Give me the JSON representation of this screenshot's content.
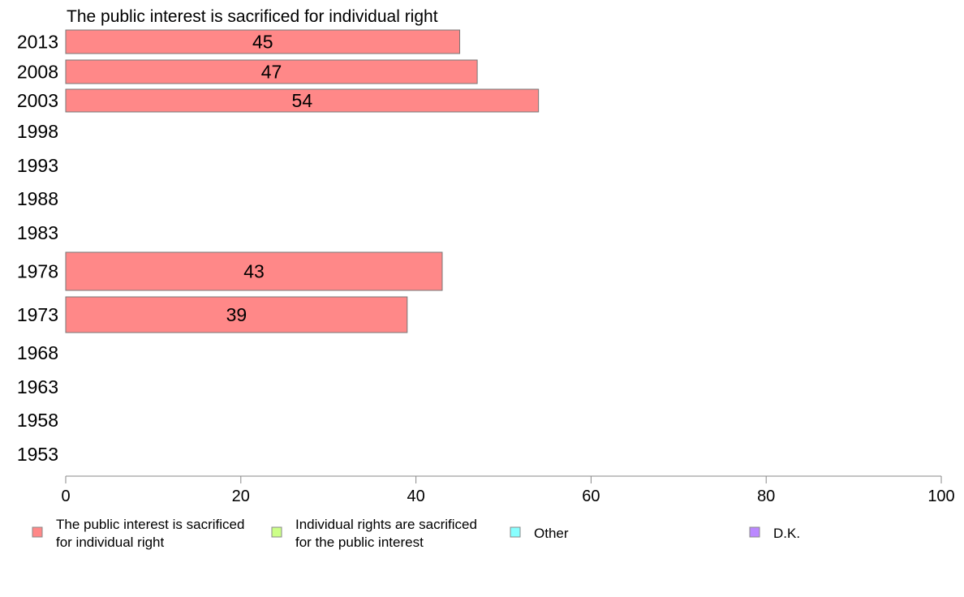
{
  "chart_data": {
    "type": "bar",
    "orientation": "horizontal",
    "title": "The public interest is sacrificed for individual right",
    "xlabel": "",
    "ylabel": "",
    "xlim": [
      0,
      100
    ],
    "x_ticks": [
      0,
      20,
      40,
      60,
      80,
      100
    ],
    "grid": false,
    "legend_position": "bottom",
    "categories": [
      "2013",
      "2008",
      "2003",
      "1998",
      "1993",
      "1988",
      "1983",
      "1978",
      "1973",
      "1968",
      "1963",
      "1958",
      "1953"
    ],
    "series": [
      {
        "name": "The public interest is sacrificed for individual right",
        "color": "#ff8888",
        "values": [
          45,
          47,
          54,
          null,
          null,
          null,
          null,
          43,
          39,
          null,
          null,
          null,
          null
        ]
      }
    ],
    "legend": [
      {
        "label_lines": [
          "The public interest is sacrificed",
          "for individual right"
        ],
        "color": "#ff8888"
      },
      {
        "label_lines": [
          "Individual rights are sacrificed",
          "for the public interest"
        ],
        "color": "#ccff88"
      },
      {
        "label_lines": [
          "Other"
        ],
        "color": "#88ffff"
      },
      {
        "label_lines": [
          "D.K."
        ],
        "color": "#bb88ff"
      }
    ]
  }
}
